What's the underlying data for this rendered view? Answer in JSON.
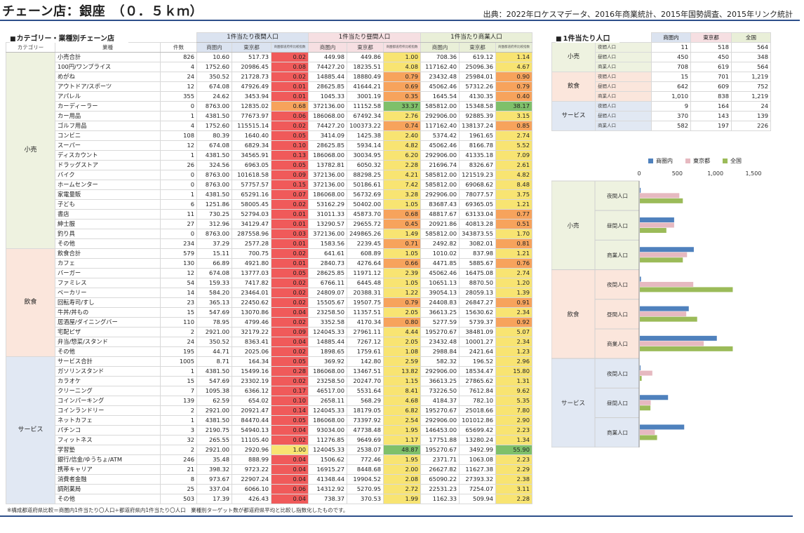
{
  "header": {
    "title": "チェーン店：銀座　（０．５ｋｍ）",
    "source": "出典：2022年ロケスマデータ、2016年商業統計、2015年国勢調査、2015年リンク統計"
  },
  "main_table": {
    "title": "カテゴリー・業種別チェーン店",
    "col_labels": {
      "category": "カテゴリー",
      "industry": "業種",
      "count": "件数"
    },
    "groups": [
      "1件当たり夜間人口",
      "1件当たり昼間人口",
      "1件当たり商業人口"
    ],
    "sub": {
      "area": "商圏内",
      "tokyo": "東京都",
      "index": "商圏都道府県比較指数"
    },
    "categories": [
      {
        "name": "小売",
        "rows": [
          [
            "小売合計",
            "826",
            "10.60",
            "517.73",
            "0.02",
            "449.98",
            "449.86",
            "1.00",
            "708.36",
            "619.12",
            "1.14"
          ],
          [
            "100円/ワンプライス",
            "4",
            "1752.60",
            "20986.45",
            "0.08",
            "74427.20",
            "18235.51",
            "4.08",
            "117162.40",
            "25096.36",
            "4.67"
          ],
          [
            "めがね",
            "24",
            "350.52",
            "21728.73",
            "0.02",
            "14885.44",
            "18880.49",
            "0.79",
            "23432.48",
            "25984.01",
            "0.90"
          ],
          [
            "アウトドア/スポーツ",
            "12",
            "674.08",
            "47926.49",
            "0.01",
            "28625.85",
            "41644.21",
            "0.69",
            "45062.46",
            "57312.26",
            "0.79"
          ],
          [
            "アパレル",
            "355",
            "24.62",
            "3453.94",
            "0.01",
            "1045.33",
            "3001.19",
            "0.35",
            "1645.54",
            "4130.35",
            "0.40"
          ],
          [
            "カーディーラー",
            "0",
            "8763.00",
            "12835.02",
            "0.68",
            "372136.00",
            "11152.58",
            "33.37",
            "585812.00",
            "15348.58",
            "38.17"
          ],
          [
            "カー用品",
            "1",
            "4381.50",
            "77673.97",
            "0.06",
            "186068.00",
            "67492.34",
            "2.76",
            "292906.00",
            "92885.39",
            "3.15"
          ],
          [
            "ゴルフ用品",
            "4",
            "1752.60",
            "115515.14",
            "0.02",
            "74427.20",
            "100373.22",
            "0.74",
            "117162.40",
            "138137.24",
            "0.85"
          ],
          [
            "コンビニ",
            "108",
            "80.39",
            "1640.40",
            "0.05",
            "3414.09",
            "1425.38",
            "2.40",
            "5374.42",
            "1961.65",
            "2.74"
          ],
          [
            "スーパー",
            "12",
            "674.08",
            "6829.34",
            "0.10",
            "28625.85",
            "5934.14",
            "4.82",
            "45062.46",
            "8166.78",
            "5.52"
          ],
          [
            "ディスカウント",
            "1",
            "4381.50",
            "34565.91",
            "0.13",
            "186068.00",
            "30034.95",
            "6.20",
            "292906.00",
            "41335.18",
            "7.09"
          ],
          [
            "ドラッグストア",
            "26",
            "324.56",
            "6963.05",
            "0.05",
            "13782.81",
            "6050.32",
            "2.28",
            "21696.74",
            "8326.67",
            "2.61"
          ],
          [
            "バイク",
            "0",
            "8763.00",
            "101618.58",
            "0.09",
            "372136.00",
            "88298.25",
            "4.21",
            "585812.00",
            "121519.23",
            "4.82"
          ],
          [
            "ホームセンター",
            "0",
            "8763.00",
            "57757.57",
            "0.15",
            "372136.00",
            "50186.61",
            "7.42",
            "585812.00",
            "69068.62",
            "8.48"
          ],
          [
            "家電量販",
            "1",
            "4381.50",
            "65291.16",
            "0.07",
            "186068.00",
            "56732.69",
            "3.28",
            "292906.00",
            "78077.57",
            "3.75"
          ],
          [
            "子ども",
            "6",
            "1251.86",
            "58005.45",
            "0.02",
            "53162.29",
            "50402.00",
            "1.05",
            "83687.43",
            "69365.05",
            "1.21"
          ],
          [
            "書店",
            "11",
            "730.25",
            "52794.03",
            "0.01",
            "31011.33",
            "45873.70",
            "0.68",
            "48817.67",
            "63133.04",
            "0.77"
          ],
          [
            "紳士服",
            "27",
            "312.96",
            "34129.47",
            "0.01",
            "13290.57",
            "29655.72",
            "0.45",
            "20921.86",
            "40813.28",
            "0.51"
          ],
          [
            "釣り具",
            "0",
            "8763.00",
            "287558.96",
            "0.03",
            "372136.00",
            "249865.26",
            "1.49",
            "585812.00",
            "343873.55",
            "1.70"
          ],
          [
            "その他",
            "234",
            "37.29",
            "2577.28",
            "0.01",
            "1583.56",
            "2239.45",
            "0.71",
            "2492.82",
            "3082.01",
            "0.81"
          ]
        ]
      },
      {
        "name": "飲食",
        "rows": [
          [
            "飲食合計",
            "579",
            "15.11",
            "700.75",
            "0.02",
            "641.61",
            "608.89",
            "1.05",
            "1010.02",
            "837.98",
            "1.21"
          ],
          [
            "カフェ",
            "130",
            "66.89",
            "4921.80",
            "0.01",
            "2840.73",
            "4276.64",
            "0.66",
            "4471.85",
            "5885.67",
            "0.76"
          ],
          [
            "バーガー",
            "12",
            "674.08",
            "13777.03",
            "0.05",
            "28625.85",
            "11971.12",
            "2.39",
            "45062.46",
            "16475.08",
            "2.74"
          ],
          [
            "ファミレス",
            "54",
            "159.33",
            "7417.82",
            "0.02",
            "6766.11",
            "6445.48",
            "1.05",
            "10651.13",
            "8870.50",
            "1.20"
          ],
          [
            "ベーカリー",
            "14",
            "584.20",
            "23464.01",
            "0.02",
            "24809.07",
            "20388.31",
            "1.22",
            "39054.13",
            "28059.13",
            "1.39"
          ],
          [
            "回転寿司/すし",
            "23",
            "365.13",
            "22450.62",
            "0.02",
            "15505.67",
            "19507.75",
            "0.79",
            "24408.83",
            "26847.27",
            "0.91"
          ],
          [
            "牛丼/丼もの",
            "15",
            "547.69",
            "13070.86",
            "0.04",
            "23258.50",
            "11357.51",
            "2.05",
            "36613.25",
            "15630.62",
            "2.34"
          ],
          [
            "居酒屋/ダイニングバー",
            "110",
            "78.95",
            "4799.46",
            "0.02",
            "3352.58",
            "4170.34",
            "0.80",
            "5277.59",
            "5739.37",
            "0.92"
          ],
          [
            "宅配ピザ",
            "2",
            "2921.00",
            "32179.22",
            "0.09",
            "124045.33",
            "27961.11",
            "4.44",
            "195270.67",
            "38481.09",
            "5.07"
          ],
          [
            "弁当/惣菜/スタンド",
            "24",
            "350.52",
            "8363.41",
            "0.04",
            "14885.44",
            "7267.12",
            "2.05",
            "23432.48",
            "10001.27",
            "2.34"
          ],
          [
            "その他",
            "195",
            "44.71",
            "2025.06",
            "0.02",
            "1898.65",
            "1759.61",
            "1.08",
            "2988.84",
            "2421.64",
            "1.23"
          ]
        ]
      },
      {
        "name": "サービス",
        "rows": [
          [
            "サービス合計",
            "1005",
            "8.71",
            "164.34",
            "0.05",
            "369.92",
            "142.80",
            "2.59",
            "582.32",
            "196.52",
            "2.96"
          ],
          [
            "ガソリンスタンド",
            "1",
            "4381.50",
            "15499.16",
            "0.28",
            "186068.00",
            "13467.51",
            "13.82",
            "292906.00",
            "18534.47",
            "15.80"
          ],
          [
            "カラオケ",
            "15",
            "547.69",
            "23302.19",
            "0.02",
            "23258.50",
            "20247.70",
            "1.15",
            "36613.25",
            "27865.62",
            "1.31"
          ],
          [
            "クリーニング",
            "7",
            "1095.38",
            "6366.12",
            "0.17",
            "46517.00",
            "5531.64",
            "8.41",
            "73226.50",
            "7612.84",
            "9.62"
          ],
          [
            "コインパーキング",
            "139",
            "62.59",
            "654.02",
            "0.10",
            "2658.11",
            "568.29",
            "4.68",
            "4184.37",
            "782.10",
            "5.35"
          ],
          [
            "コインランドリー",
            "2",
            "2921.00",
            "20921.47",
            "0.14",
            "124045.33",
            "18179.05",
            "6.82",
            "195270.67",
            "25018.66",
            "7.80"
          ],
          [
            "ネットカフェ",
            "1",
            "4381.50",
            "84470.44",
            "0.05",
            "186068.00",
            "73397.92",
            "2.54",
            "292906.00",
            "101012.86",
            "2.90"
          ],
          [
            "パチンコ",
            "3",
            "2190.75",
            "54940.13",
            "0.04",
            "93034.00",
            "47738.48",
            "1.95",
            "146453.00",
            "65699.42",
            "2.23"
          ],
          [
            "フィットネス",
            "32",
            "265.55",
            "11105.40",
            "0.02",
            "11276.85",
            "9649.69",
            "1.17",
            "17751.88",
            "13280.24",
            "1.34"
          ],
          [
            "学習塾",
            "2",
            "2921.00",
            "2920.96",
            "1.00",
            "124045.33",
            "2538.07",
            "48.87",
            "195270.67",
            "3492.99",
            "55.90"
          ],
          [
            "銀行/信金/ゆうちょ/ATM",
            "246",
            "35.48",
            "888.99",
            "0.04",
            "1506.62",
            "772.46",
            "1.95",
            "2371.71",
            "1063.08",
            "2.23"
          ],
          [
            "携帯キャリア",
            "21",
            "398.32",
            "9723.22",
            "0.04",
            "16915.27",
            "8448.68",
            "2.00",
            "26627.82",
            "11627.38",
            "2.29"
          ],
          [
            "消費者金融",
            "8",
            "973.67",
            "22907.24",
            "0.04",
            "41348.44",
            "19904.52",
            "2.08",
            "65090.22",
            "27393.32",
            "2.38"
          ],
          [
            "調剤薬局",
            "25",
            "337.04",
            "6066.10",
            "0.06",
            "14312.92",
            "5270.95",
            "2.72",
            "22531.23",
            "7254.07",
            "3.11"
          ],
          [
            "その他",
            "503",
            "17.39",
            "426.43",
            "0.04",
            "738.37",
            "370.53",
            "1.99",
            "1162.33",
            "509.94",
            "2.28"
          ]
        ]
      }
    ],
    "footnote": "※構成都道府県比較＝商圏内1件当たり〇人口÷都道府県内1件当たり〇人口　業種別ターゲット数が都道府県平均と比較し指数化したものです。"
  },
  "side_table": {
    "title": "1件当たり人口",
    "cols": [
      "商圏内",
      "東京都",
      "全国"
    ],
    "categories": [
      {
        "name": "小売",
        "rows": [
          [
            "夜間人口",
            "11",
            "518",
            "564"
          ],
          [
            "昼間人口",
            "450",
            "450",
            "348"
          ],
          [
            "商業人口",
            "708",
            "619",
            "564"
          ]
        ]
      },
      {
        "name": "飲食",
        "rows": [
          [
            "夜間人口",
            "15",
            "701",
            "1,219"
          ],
          [
            "昼間人口",
            "642",
            "609",
            "752"
          ],
          [
            "商業人口",
            "1,010",
            "838",
            "1,219"
          ]
        ]
      },
      {
        "name": "サービス",
        "rows": [
          [
            "夜間人口",
            "9",
            "164",
            "24"
          ],
          [
            "昼間人口",
            "370",
            "143",
            "139"
          ],
          [
            "商業人口",
            "582",
            "197",
            "226"
          ]
        ]
      }
    ]
  },
  "colors": {
    "area": "#4f81bd",
    "tokyo": "#e6b9c0",
    "nation": "#9bbb59",
    "index_red": "#f05a5a",
    "index_orange": "#f7a35c",
    "index_yellow": "#f8e472",
    "index_green": "#7fc06a",
    "retail_bg": "#eef2e0",
    "food_bg": "#fbe6dc",
    "service_bg": "#e1e8f3"
  },
  "chart_data": {
    "type": "bar",
    "orientation": "horizontal",
    "legend": [
      "商圏内",
      "東京都",
      "全国"
    ],
    "legend_position": "top",
    "xlim": [
      0,
      1500
    ],
    "x_ticks": [
      "0",
      "500",
      "1,000",
      "1,500"
    ],
    "groups": [
      {
        "name": "小売",
        "categories": [
          "夜間人口",
          "昼間人口",
          "商業人口"
        ]
      },
      {
        "name": "飲食",
        "categories": [
          "夜間人口",
          "昼間人口",
          "商業人口"
        ]
      },
      {
        "name": "サービス",
        "categories": [
          "夜間人口",
          "昼間人口",
          "商業人口"
        ]
      }
    ],
    "series": [
      {
        "name": "商圏内",
        "values": [
          11,
          450,
          708,
          15,
          642,
          1010,
          9,
          370,
          582
        ]
      },
      {
        "name": "東京都",
        "values": [
          518,
          450,
          619,
          701,
          609,
          838,
          164,
          143,
          197
        ]
      },
      {
        "name": "全国",
        "values": [
          564,
          348,
          564,
          1219,
          752,
          1219,
          24,
          139,
          226
        ]
      }
    ]
  }
}
